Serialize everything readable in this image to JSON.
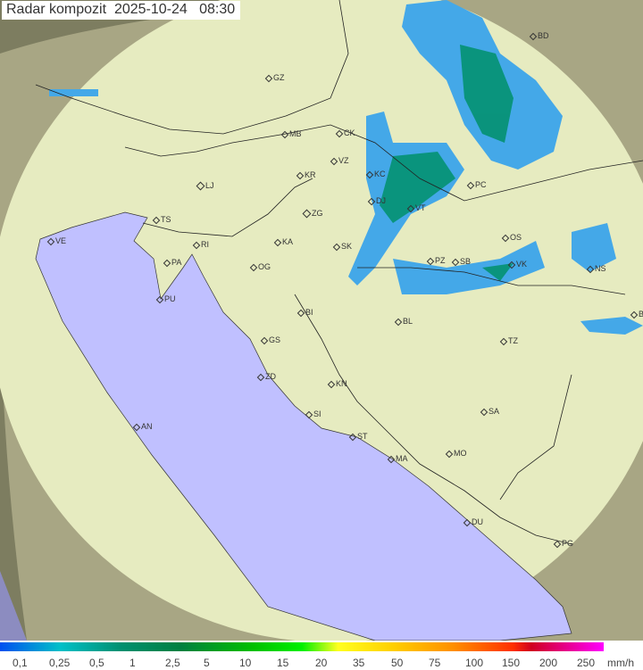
{
  "title": "Radar kompozit  2025-10-24   08:30",
  "colors": {
    "sea": "#c0c0ff",
    "land": "#e8ecc0",
    "outside": "#8a8a6a",
    "rain_light": "#30b0e0",
    "rain_moderate": "#00906a"
  },
  "cities": [
    "BD",
    "GZ",
    "MB",
    "CK",
    "VZ",
    "KR",
    "KC",
    "PC",
    "LJ",
    "ZG",
    "VT",
    "DJ",
    "TS",
    "VE",
    "KA",
    "SK",
    "OS",
    "RI",
    "PA",
    "OG",
    "PZ",
    "SB",
    "VK",
    "NS",
    "PU",
    "BI",
    "BL",
    "BG",
    "GS",
    "TZ",
    "ZD",
    "KN",
    "SA",
    "AN",
    "SI",
    "ST",
    "MA",
    "MO",
    "DU",
    "PG"
  ],
  "legend": {
    "labels": [
      "0,1",
      "0,25",
      "0,5",
      "1",
      "2,5",
      "5",
      "10",
      "15",
      "20",
      "35",
      "50",
      "75",
      "100",
      "150",
      "200",
      "250"
    ],
    "unit": "mm/h"
  }
}
